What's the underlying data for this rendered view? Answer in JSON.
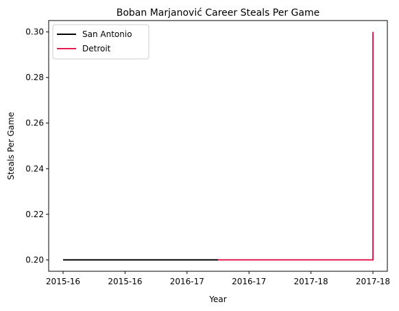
{
  "chart_data": {
    "type": "line",
    "title": "Boban Marjanović Career Steals Per Game",
    "xlabel": "Year",
    "ylabel": "Steals Per Game",
    "x_tick_labels": [
      "2015-16",
      "2015-16",
      "2016-17",
      "2016-17",
      "2017-18",
      "2017-18"
    ],
    "ylim": [
      0.195,
      0.305
    ],
    "y_ticks": [
      0.2,
      0.22,
      0.24,
      0.26,
      0.28,
      0.3
    ],
    "grid": false,
    "legend_position": "top-left",
    "series": [
      {
        "name": "San Antonio",
        "color": "#000000",
        "x": [
          0,
          0.2,
          0.4,
          0.5
        ],
        "y": [
          0.2,
          0.2,
          0.2,
          0.2
        ]
      },
      {
        "name": "Detroit",
        "color": "#e31a4e",
        "x": [
          0.5,
          0.8,
          1.0,
          1.0
        ],
        "y": [
          0.2,
          0.2,
          0.2,
          0.3
        ]
      }
    ]
  }
}
